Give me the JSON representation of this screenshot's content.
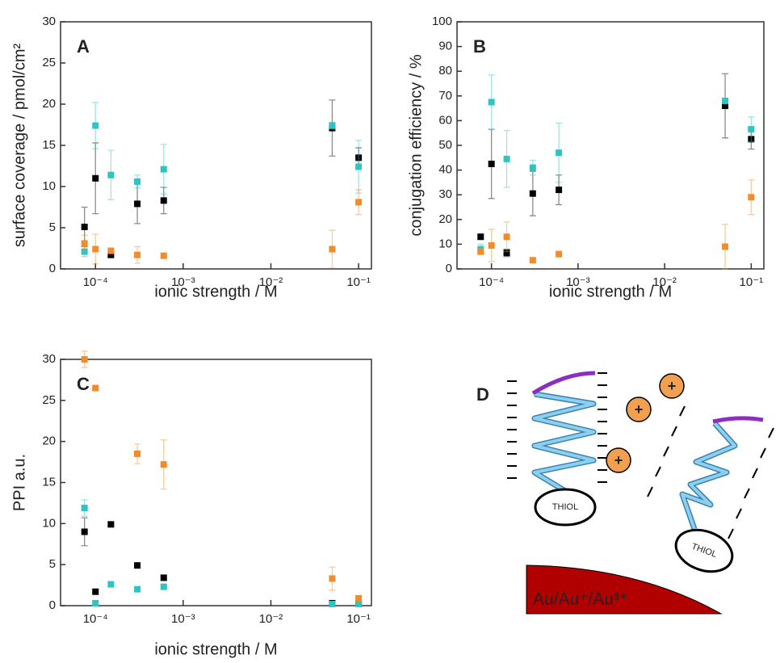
{
  "chart_data": [
    {
      "type": "scatter",
      "panel_label": "A",
      "xlabel": "ionic strength / M",
      "ylabel": "surface coverage / pmol/cm²",
      "log_x": true,
      "xlim": [
        4e-05,
        0.14
      ],
      "xticks": [
        {
          "value": 0.0001,
          "label": "10⁻⁴"
        },
        {
          "value": 0.001,
          "label": "10⁻³"
        },
        {
          "value": 0.01,
          "label": "10⁻²"
        },
        {
          "value": 0.1,
          "label": "10⁻¹"
        }
      ],
      "ylim": [
        0,
        30
      ],
      "yticks": [
        0,
        5,
        10,
        15,
        20,
        25,
        30
      ],
      "x": [
        7.5e-05,
        0.0001,
        0.00015,
        0.0003,
        0.0006,
        0.05,
        0.1
      ],
      "series": [
        {
          "color": "#000000",
          "values": [
            5.1,
            11,
            1.7,
            7.9,
            8.3,
            17.1,
            13.5
          ],
          "errors": [
            2.4,
            4.3,
            0.3,
            2.4,
            1.6,
            3.4,
            1.2
          ]
        },
        {
          "color": "#2ec4c4",
          "values": [
            2.1,
            17.4,
            11.4,
            10.6,
            12.1,
            17.4,
            12.4
          ],
          "errors": [
            0.6,
            2.8,
            3,
            0.8,
            3,
            0.4,
            3.2
          ]
        },
        {
          "color": "#f28c28",
          "values": [
            3.1,
            2.4,
            2.2,
            1.7,
            1.6,
            2.4,
            8.1
          ],
          "errors": [
            1,
            1.8,
            0.3,
            1,
            0.2,
            2.3,
            1.5
          ]
        }
      ]
    },
    {
      "type": "scatter",
      "panel_label": "B",
      "xlabel": "ionic strength / M",
      "ylabel": "conjugation efficiency / %",
      "log_x": true,
      "xlim": [
        4e-05,
        0.14
      ],
      "xticks": [
        {
          "value": 0.0001,
          "label": "10⁻⁴"
        },
        {
          "value": 0.001,
          "label": "10⁻³"
        },
        {
          "value": 0.01,
          "label": "10⁻²"
        },
        {
          "value": 0.1,
          "label": "10⁻¹"
        }
      ],
      "ylim": [
        0,
        100
      ],
      "yticks": [
        0,
        10,
        20,
        30,
        40,
        50,
        60,
        70,
        80,
        90,
        100
      ],
      "x": [
        7.5e-05,
        0.0001,
        0.00015,
        0.0003,
        0.0006,
        0.05,
        0.1
      ],
      "series": [
        {
          "color": "#000000",
          "values": [
            13,
            42.5,
            6.5,
            30.5,
            32,
            66,
            52.5
          ],
          "errors": [
            1,
            14,
            1.5,
            9,
            6,
            13,
            4
          ]
        },
        {
          "color": "#2ec4c4",
          "values": [
            8,
            67.5,
            44.5,
            41,
            47,
            68,
            56.5
          ],
          "errors": [
            2,
            11,
            11.5,
            3,
            12,
            1,
            5
          ]
        },
        {
          "color": "#f28c28",
          "values": [
            7,
            9.5,
            13,
            3.5,
            6,
            9,
            29
          ],
          "errors": [
            1,
            6.5,
            6,
            1,
            1,
            9,
            7
          ]
        }
      ]
    },
    {
      "type": "scatter",
      "panel_label": "C",
      "xlabel": "ionic strength / M",
      "ylabel": "PPI a.u.",
      "log_x": true,
      "xlim": [
        4e-05,
        0.14
      ],
      "xticks": [
        {
          "value": 0.0001,
          "label": "10⁻⁴"
        },
        {
          "value": 0.001,
          "label": "10⁻³"
        },
        {
          "value": 0.01,
          "label": "10⁻²"
        },
        {
          "value": 0.1,
          "label": "10⁻¹"
        }
      ],
      "ylim": [
        0,
        30
      ],
      "yticks": [
        0,
        5,
        10,
        15,
        20,
        25,
        30
      ],
      "x": [
        7.5e-05,
        0.0001,
        0.00015,
        0.0003,
        0.0006,
        0.05,
        0.1
      ],
      "series": [
        {
          "color": "#000000",
          "values": [
            9,
            1.7,
            9.9,
            4.9,
            3.4,
            0.3,
            0.3
          ],
          "errors": [
            1.7,
            0.2,
            0.3,
            0.2,
            0.3,
            0.2,
            0.2
          ]
        },
        {
          "color": "#2ec4c4",
          "values": [
            11.9,
            0.3,
            2.6,
            2,
            2.3,
            0.2,
            0.2
          ],
          "errors": [
            1,
            0.2,
            0.2,
            0.2,
            0.2,
            0.2,
            0.2
          ]
        },
        {
          "color": "#f28c28",
          "values": [
            30,
            26.5,
            null,
            18.5,
            17.2,
            3.3,
            0.9
          ],
          "errors": [
            1,
            0.3,
            null,
            1.2,
            3,
            1.4,
            0.2
          ]
        }
      ]
    }
  ],
  "diagram": {
    "label": "D",
    "thiol_labels": [
      "THIOL",
      "THIOL"
    ],
    "charge_label": "+",
    "surface_label": "Au/Au⁺/Au³⁺"
  }
}
